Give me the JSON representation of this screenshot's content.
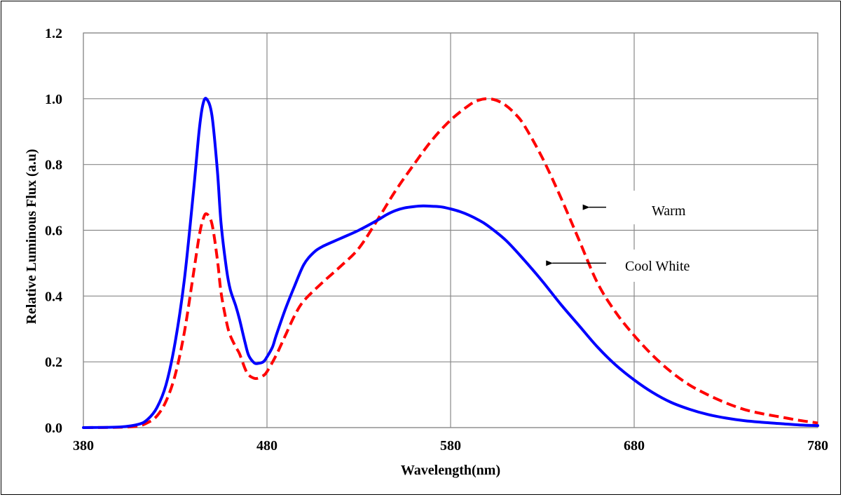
{
  "chart_data": {
    "type": "line",
    "title": "",
    "xlabel": "Wavelength(nm)",
    "ylabel": "Relative Luminous Flux (a.u)",
    "xlim": [
      380,
      780
    ],
    "ylim": [
      0,
      1.2
    ],
    "x_ticks": [
      "380",
      "480",
      "580",
      "680",
      "780"
    ],
    "y_ticks": [
      "0.0",
      "0.2",
      "0.4",
      "0.6",
      "0.8",
      "1.0",
      "1.2"
    ],
    "grid": true,
    "series": [
      {
        "name": "Cool White",
        "color": "#0000ff",
        "style": "solid",
        "x": [
          380,
          400,
          410,
          415,
          420,
          425,
          430,
          435,
          440,
          443,
          445,
          447,
          450,
          453,
          455,
          458,
          460,
          463,
          465,
          468,
          470,
          473,
          475,
          478,
          480,
          483,
          485,
          490,
          495,
          500,
          505,
          510,
          520,
          530,
          540,
          545,
          550,
          555,
          560,
          565,
          570,
          575,
          580,
          585,
          590,
          595,
          600,
          610,
          620,
          630,
          640,
          650,
          660,
          670,
          680,
          690,
          700,
          710,
          720,
          730,
          740,
          750,
          760,
          770,
          780
        ],
        "y": [
          0.0,
          0.002,
          0.01,
          0.025,
          0.06,
          0.13,
          0.26,
          0.45,
          0.72,
          0.9,
          0.98,
          1.0,
          0.95,
          0.78,
          0.62,
          0.48,
          0.42,
          0.37,
          0.33,
          0.26,
          0.22,
          0.197,
          0.195,
          0.2,
          0.215,
          0.245,
          0.28,
          0.36,
          0.43,
          0.495,
          0.53,
          0.55,
          0.575,
          0.6,
          0.63,
          0.647,
          0.66,
          0.668,
          0.672,
          0.674,
          0.673,
          0.671,
          0.665,
          0.657,
          0.646,
          0.632,
          0.615,
          0.57,
          0.51,
          0.445,
          0.375,
          0.31,
          0.245,
          0.19,
          0.145,
          0.107,
          0.077,
          0.056,
          0.04,
          0.029,
          0.021,
          0.016,
          0.012,
          0.008,
          0.006
        ]
      },
      {
        "name": "Warm",
        "color": "#ff0000",
        "style": "dashed",
        "x": [
          380,
          400,
          410,
          415,
          420,
          425,
          430,
          435,
          440,
          443,
          445,
          447,
          450,
          453,
          455,
          458,
          460,
          463,
          465,
          468,
          470,
          473,
          475,
          478,
          480,
          485,
          490,
          495,
          500,
          510,
          520,
          530,
          540,
          550,
          560,
          570,
          580,
          590,
          595,
          600,
          605,
          610,
          615,
          620,
          630,
          640,
          650,
          660,
          670,
          680,
          690,
          700,
          710,
          720,
          730,
          740,
          750,
          760,
          770,
          780
        ],
        "y": [
          0.0,
          0.001,
          0.005,
          0.015,
          0.035,
          0.08,
          0.16,
          0.29,
          0.47,
          0.58,
          0.63,
          0.65,
          0.62,
          0.51,
          0.41,
          0.32,
          0.28,
          0.245,
          0.225,
          0.18,
          0.16,
          0.15,
          0.15,
          0.158,
          0.17,
          0.22,
          0.28,
          0.34,
          0.385,
          0.44,
          0.49,
          0.545,
          0.63,
          0.72,
          0.8,
          0.875,
          0.935,
          0.98,
          0.995,
          1.0,
          0.995,
          0.98,
          0.955,
          0.92,
          0.82,
          0.7,
          0.57,
          0.44,
          0.35,
          0.28,
          0.22,
          0.17,
          0.13,
          0.1,
          0.075,
          0.055,
          0.042,
          0.032,
          0.022,
          0.014
        ]
      }
    ],
    "annotations": [
      {
        "text": "Warm",
        "arrow_to": [
          652,
          0.67
        ]
      },
      {
        "text": "Cool White",
        "arrow_to": [
          632,
          0.5
        ]
      }
    ]
  }
}
